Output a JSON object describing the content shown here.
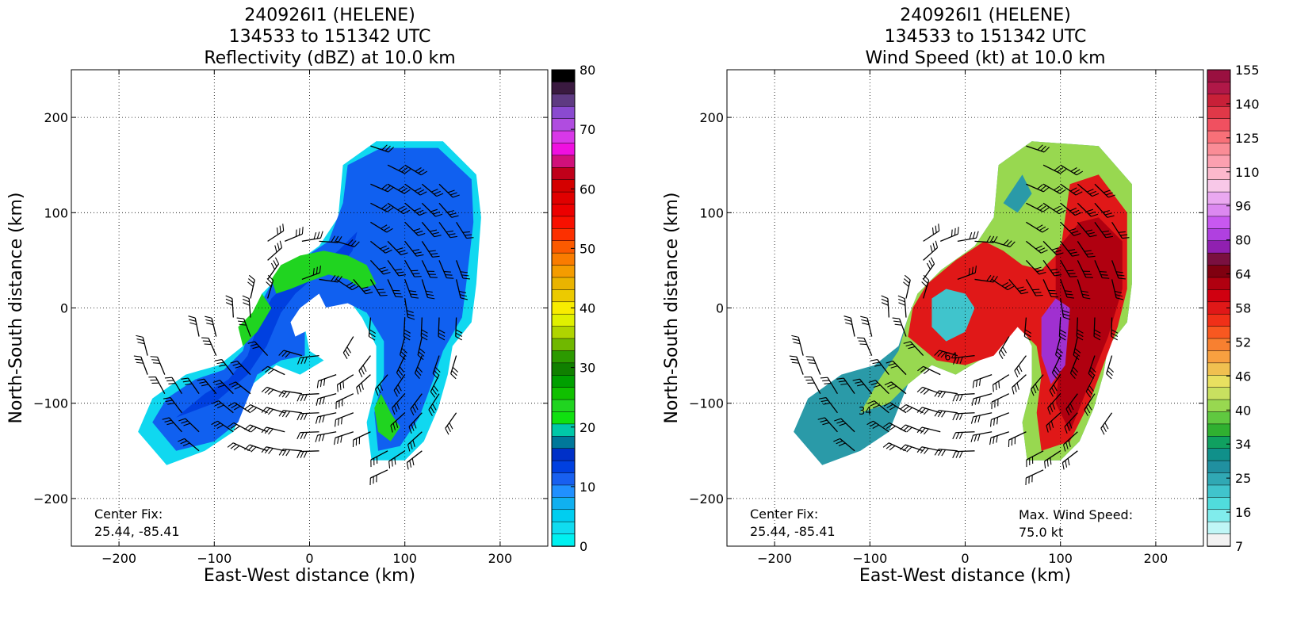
{
  "panels": [
    {
      "title_lines": [
        "240926I1 (HELENE)",
        "134533 to 151342 UTC",
        "Reflectivity (dBZ) at 10.0 km"
      ],
      "xlabel": "East-West distance (km)",
      "ylabel": "North-South distance (km)",
      "center_fix_label": "Center Fix:",
      "center_fix_value": "25.44, -85.41",
      "max_wind_label": "",
      "max_wind_value": "",
      "colorbar_ticks": [
        "80",
        "70",
        "60",
        "50",
        "40",
        "30",
        "20",
        "10",
        "0"
      ],
      "colorbar_colors": [
        "#000000",
        "#3a1a40",
        "#5e3a82",
        "#8a4ad0",
        "#b04ce0",
        "#d838e8",
        "#ef10e0",
        "#d0107a",
        "#c0001a",
        "#d40000",
        "#e00000",
        "#ec0000",
        "#f81000",
        "#fc3000",
        "#fc5a00",
        "#fa7c00",
        "#f49c00",
        "#eab400",
        "#ecca00",
        "#f8ec00",
        "#e0f000",
        "#b0d400",
        "#70b800",
        "#2c9a00",
        "#108000",
        "#00a000",
        "#10c000",
        "#20d420",
        "#10e010",
        "#00c8a8",
        "#00789a",
        "#0030c8",
        "#0040e0",
        "#1860f0",
        "#2090ff",
        "#10b0f0",
        "#00cef0",
        "#10dcf0",
        "#00f0f0"
      ],
      "chart_type": "heatmap"
    },
    {
      "title_lines": [
        "240926I1 (HELENE)",
        "134533 to 151342 UTC",
        "Wind Speed (kt) at 10.0 km"
      ],
      "xlabel": "East-West distance (km)",
      "ylabel": "North-South distance (km)",
      "center_fix_label": "Center Fix:",
      "center_fix_value": "25.44, -85.41",
      "max_wind_label": "Max. Wind Speed:",
      "max_wind_value": "75.0 kt",
      "colorbar_ticks": [
        "155",
        "140",
        "125",
        "110",
        "96",
        "80",
        "64",
        "58",
        "52",
        "46",
        "40",
        "34",
        "25",
        "16",
        "7"
      ],
      "colorbar_colors": [
        "#9a1040",
        "#b01848",
        "#c82038",
        "#e03848",
        "#f05060",
        "#f87078",
        "#fa8c96",
        "#fca0b0",
        "#fcb8cc",
        "#f8c8e8",
        "#eaa8f0",
        "#dc88f0",
        "#c858f0",
        "#b040e0",
        "#9020b0",
        "#7a1040",
        "#800010",
        "#b00010",
        "#d00010",
        "#e01818",
        "#f03018",
        "#f85820",
        "#f88030",
        "#f8a040",
        "#f0c050",
        "#e8e060",
        "#c8e060",
        "#98d850",
        "#60c840",
        "#30b030",
        "#10a060",
        "#10908a",
        "#2090a0",
        "#30a8b4",
        "#40c4cc",
        "#50dcdc",
        "#80ecec",
        "#c0f6f6",
        "#f2f2f2"
      ],
      "chart_type": "heatmap"
    }
  ],
  "chart_data": [
    {
      "type": "heatmap",
      "title": "240926I1 (HELENE) 134533 to 151342 UTC Reflectivity (dBZ) at 10.0 km",
      "xlabel": "East-West distance (km)",
      "ylabel": "North-South distance (km)",
      "xlim": [
        -250,
        250
      ],
      "ylim": [
        -250,
        250
      ],
      "xticks": [
        -200,
        -100,
        0,
        100,
        200
      ],
      "yticks": [
        -200,
        -100,
        0,
        100,
        200
      ],
      "grid": true,
      "colorbar": {
        "label": "dBZ",
        "range": [
          0,
          80
        ],
        "ticks": [
          0,
          10,
          20,
          30,
          40,
          50,
          60,
          70,
          80
        ]
      },
      "annotations": [
        "Center Fix:",
        "25.44, -85.41"
      ]
    },
    {
      "type": "heatmap",
      "title": "240926I1 (HELENE) 134533 to 151342 UTC Wind Speed (kt) at 10.0 km",
      "xlabel": "East-West distance (km)",
      "ylabel": "North-South distance (km)",
      "xlim": [
        -250,
        250
      ],
      "ylim": [
        -250,
        250
      ],
      "xticks": [
        -200,
        -100,
        0,
        100,
        200
      ],
      "yticks": [
        -200,
        -100,
        0,
        100,
        200
      ],
      "grid": true,
      "colorbar": {
        "label": "kt",
        "ticks": [
          7,
          16,
          25,
          34,
          40,
          46,
          52,
          58,
          64,
          80,
          96,
          110,
          125,
          140,
          155
        ]
      },
      "annotations": [
        "Center Fix:",
        "25.44, -85.41",
        "Max. Wind Speed:",
        "75.0 kt"
      ],
      "contour_labels": [
        "34",
        "64"
      ]
    }
  ]
}
